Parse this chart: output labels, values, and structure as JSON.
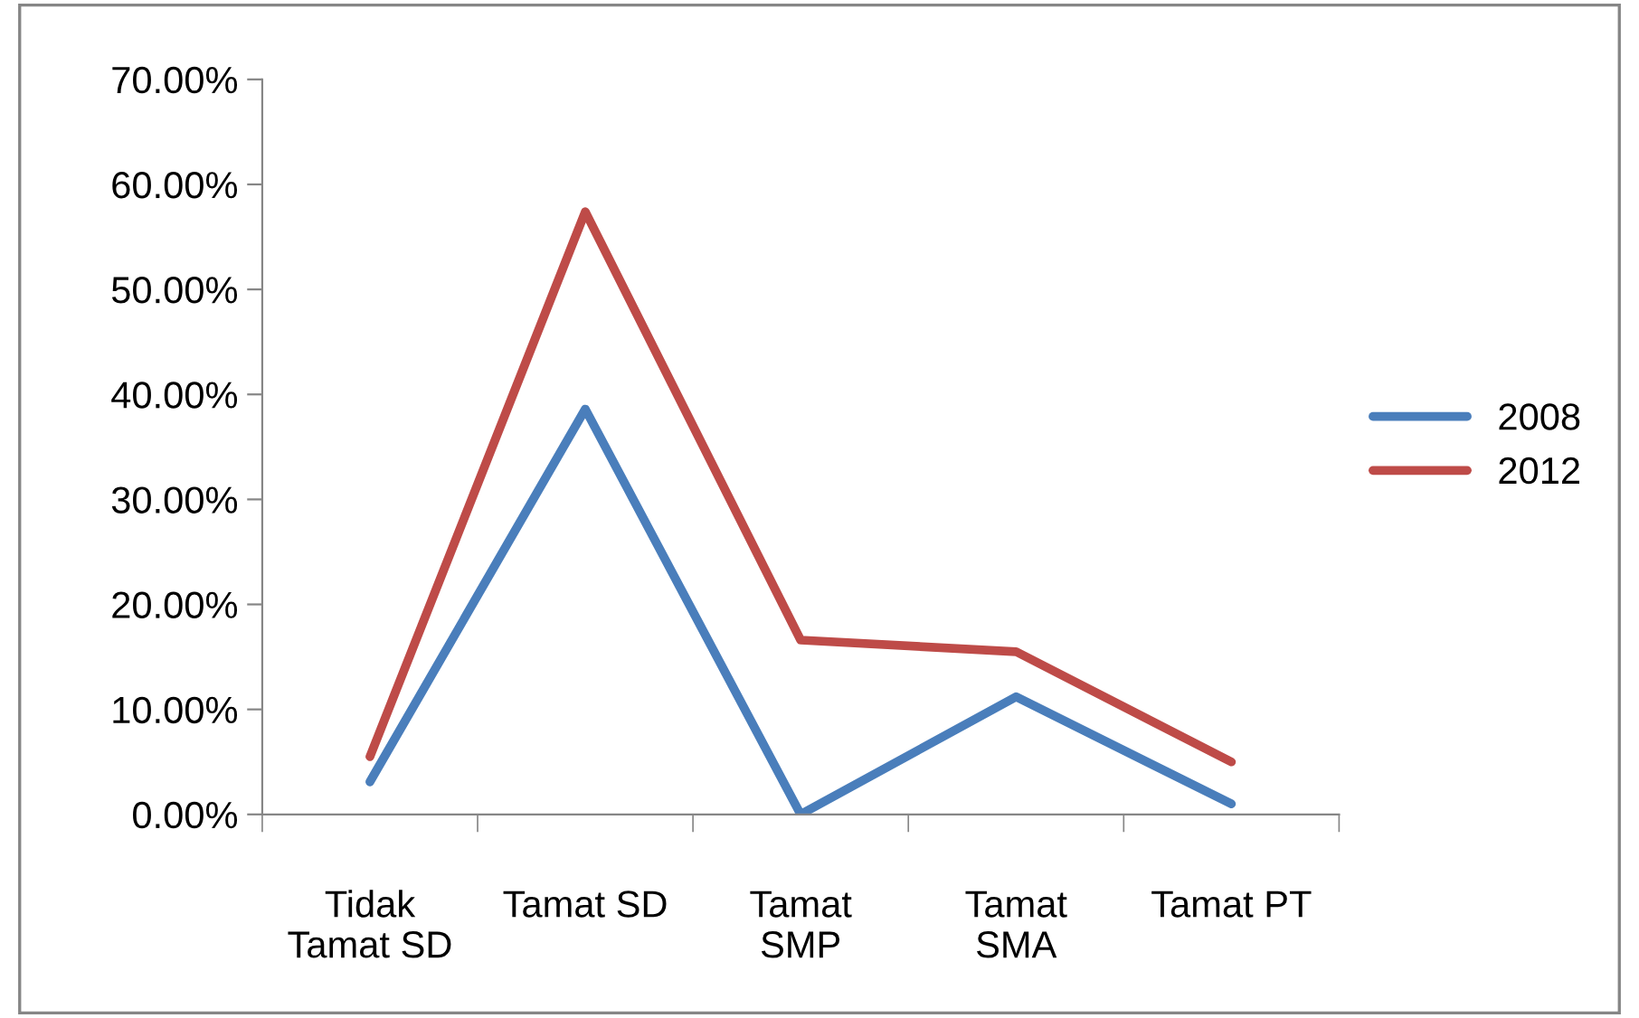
{
  "chart_data": {
    "type": "line",
    "categories": [
      "Tidak\nTamat SD",
      "Tamat SD",
      "Tamat\nSMP",
      "Tamat\nSMA",
      "Tamat PT"
    ],
    "series": [
      {
        "name": "2008",
        "color": "#4a7ebb",
        "values": [
          3.1,
          38.6,
          0.0,
          11.2,
          1.0
        ]
      },
      {
        "name": "2012",
        "color": "#be4b48",
        "values": [
          5.5,
          57.4,
          16.6,
          15.5,
          5.0
        ]
      }
    ],
    "ylim": [
      0,
      70
    ],
    "yticks": [
      {
        "value": 0,
        "label": "0.00%"
      },
      {
        "value": 10,
        "label": "10.00%"
      },
      {
        "value": 20,
        "label": "20.00%"
      },
      {
        "value": 30,
        "label": "30.00%"
      },
      {
        "value": 40,
        "label": "40.00%"
      },
      {
        "value": 50,
        "label": "50.00%"
      },
      {
        "value": 60,
        "label": "60.00%"
      },
      {
        "value": 70,
        "label": "70.00%"
      }
    ],
    "grid": false,
    "legend": "right",
    "marker": "none",
    "line_style": "solid"
  }
}
